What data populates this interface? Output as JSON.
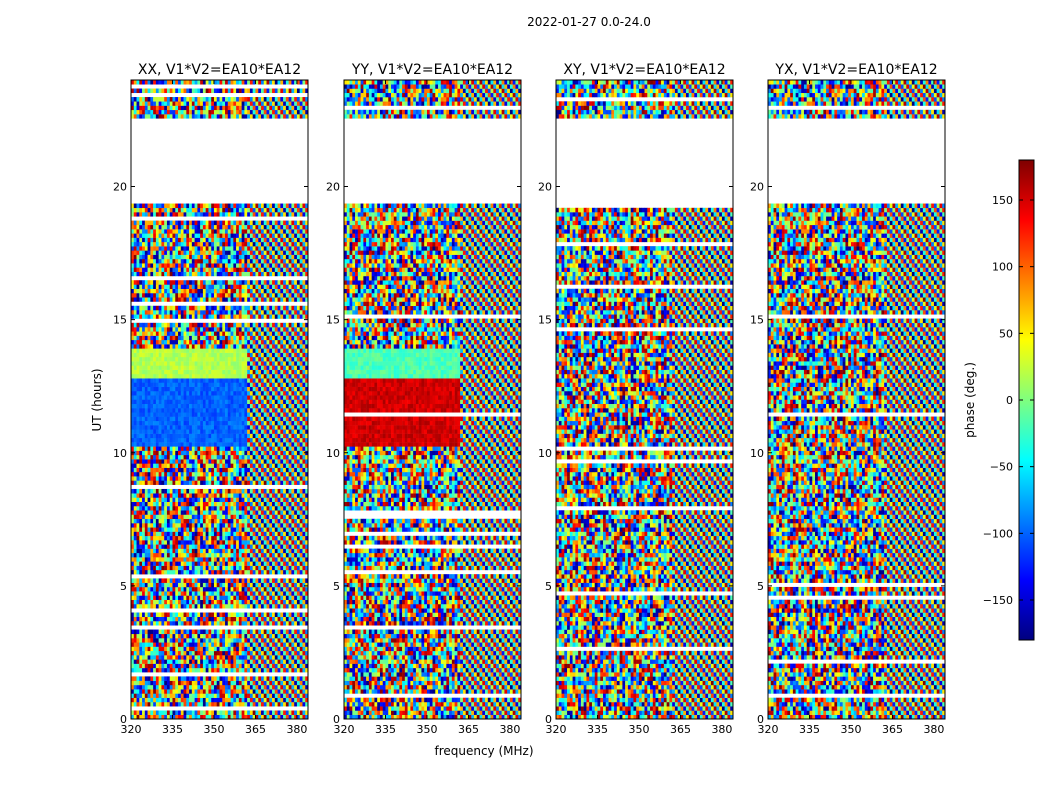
{
  "chart_data": {
    "type": "heatmap",
    "title": "2022-01-27 0.0-24.0",
    "ylabel": "UT (hours)",
    "xlabel": "frequency (MHz)",
    "xlim": [
      320,
      384
    ],
    "ylim": [
      0,
      24
    ],
    "xticks": [
      320,
      335,
      350,
      365,
      380
    ],
    "yticks": [
      0,
      5,
      10,
      15,
      20
    ],
    "panels": [
      {
        "name": "XX",
        "title": "XX, V1*V2=EA10*EA12"
      },
      {
        "name": "YY",
        "title": "YY, V1*V2=EA10*EA12"
      },
      {
        "name": "XY",
        "title": "XY, V1*V2=EA10*EA12"
      },
      {
        "name": "YX",
        "title": "YX, V1*V2=EA10*EA12"
      }
    ],
    "flagged_ut_range": [
      19.3,
      22.6
    ],
    "colorbar": {
      "label": "phase (deg.)",
      "range": [
        -180,
        180
      ],
      "ticks": [
        -150,
        -100,
        -50,
        0,
        50,
        100,
        150
      ],
      "tick_labels": [
        "−150",
        "−100",
        "−50",
        "0",
        "50",
        "100",
        "150"
      ],
      "colormap": [
        "#00007f",
        "#0000ff",
        "#007fff",
        "#00ffff",
        "#7fff7f",
        "#ffff00",
        "#ff7f00",
        "#ff0000",
        "#7f0000"
      ]
    }
  }
}
